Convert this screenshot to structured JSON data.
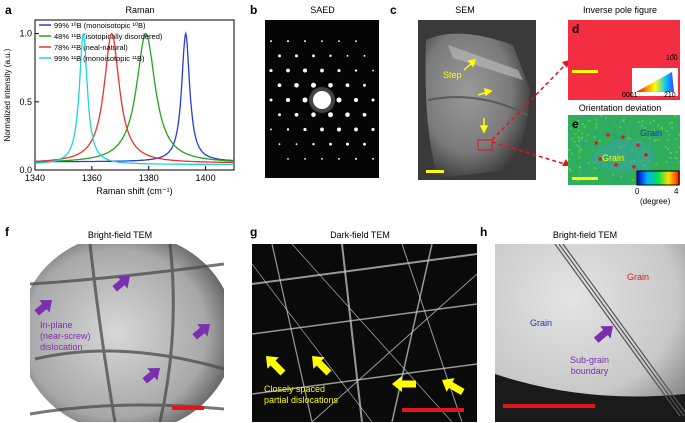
{
  "panels": {
    "a": {
      "letter": "a",
      "title": "Raman"
    },
    "b": {
      "letter": "b",
      "title": "SAED"
    },
    "c": {
      "letter": "c",
      "title": "SEM",
      "step_label": "Step"
    },
    "d": {
      "letter": "d",
      "title": "Inverse pole figure",
      "tri_labels": [
        "10̅0",
        "0001",
        "2̅10"
      ]
    },
    "e": {
      "letter": "e",
      "title": "Orientation deviation",
      "grain_label_1": "Grain",
      "grain_label_2": "Grain",
      "scale_min": "0",
      "scale_max": "4",
      "scale_unit": "(degree)"
    },
    "f": {
      "letter": "f",
      "title": "Bright-field TEM",
      "annotation": [
        "In-plane",
        "(near-screw)",
        "dislocation"
      ]
    },
    "g": {
      "letter": "g",
      "title": "Dark-field TEM",
      "annotation": [
        "Closely spaced",
        "partial dislocations"
      ]
    },
    "h": {
      "letter": "h",
      "title": "Bright-field TEM",
      "grain_left": "Grain",
      "grain_right": "Grain",
      "annotation": [
        "Sub-grain",
        "boundary"
      ]
    }
  },
  "colors": {
    "purple": "#7b2fb0",
    "yellow": "#ffff00",
    "red": "#e0161a",
    "blue": "#1f2fd0"
  },
  "chart_data": {
    "type": "line",
    "title": "Raman",
    "xlabel": "Raman shift (cm⁻¹)",
    "ylabel": "Normalized intensity (a.u.)",
    "xlim": [
      1340,
      1410
    ],
    "ylim": [
      0,
      1.1
    ],
    "xticks": [
      "1340",
      "1360",
      "1380",
      "1400"
    ],
    "yticks": [
      "0.0",
      "0.5",
      "1.0"
    ],
    "legend_position": "top-left",
    "series": [
      {
        "name": "99% ¹⁰B (monoisotopic ¹⁰B)",
        "color": "#2b3bd6",
        "peak": 1393,
        "fwhm": 3.4,
        "base": 0.06
      },
      {
        "name": "48% ¹¹B (isotopically disordered)",
        "color": "#22a322",
        "peak": 1379,
        "fwhm": 8.0,
        "base": 0.05
      },
      {
        "name": "78% ¹¹B (neal-natural)",
        "color": "#e8342a",
        "peak": 1367,
        "fwhm": 6.5,
        "base": 0.05
      },
      {
        "name": "99% ¹¹B (monoisotopic ¹¹B)",
        "color": "#1fd3e0",
        "peak": 1357,
        "fwhm": 3.4,
        "base": 0.04
      }
    ]
  }
}
